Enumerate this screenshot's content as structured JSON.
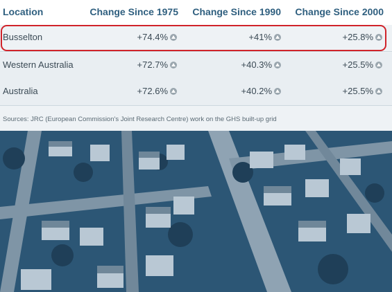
{
  "table": {
    "headers": {
      "location": "Location",
      "c1975": "Change Since 1975",
      "c1990": "Change Since 1990",
      "c2000": "Change Since 2000"
    },
    "rows": [
      {
        "location": "Busselton",
        "c1975": "+74.4%",
        "c1990": "+41%",
        "c2000": "+25.8%",
        "highlighted": true
      },
      {
        "location": "Western Australia",
        "c1975": "+72.7%",
        "c1990": "+40.3%",
        "c2000": "+25.5%"
      },
      {
        "location": "Australia",
        "c1975": "+72.6%",
        "c1990": "+40.2%",
        "c2000": "+25.5%"
      }
    ]
  },
  "sources": "Sources: JRC (European Commission's Joint Research Centre) work on the GHS built-up grid",
  "icons": {
    "change_indicator": "up-arrow-circle-icon"
  },
  "colors": {
    "header_text": "#2f5f7f",
    "highlight_border": "#d0232a",
    "aerial_tint": "#2f5a78"
  }
}
